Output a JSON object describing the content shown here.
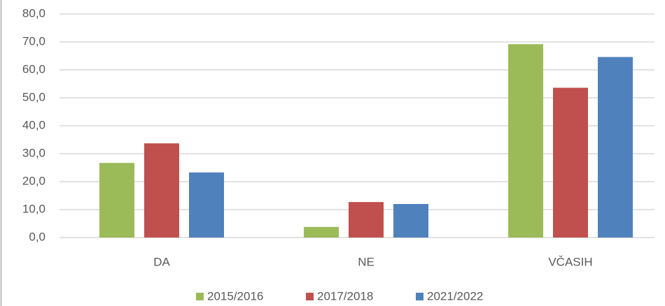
{
  "chart_data": {
    "type": "bar",
    "categories": [
      "DA",
      "NE",
      "VČASIH"
    ],
    "series": [
      {
        "name": "2015/2016",
        "color": "#9bbb59",
        "values": [
          26.7,
          3.8,
          69.2
        ]
      },
      {
        "name": "2017/2018",
        "color": "#c0504d",
        "values": [
          33.7,
          12.7,
          53.6
        ]
      },
      {
        "name": "2021/2022",
        "color": "#4f81bd",
        "values": [
          23.3,
          12.0,
          64.6
        ]
      }
    ],
    "ylim": [
      0,
      80
    ],
    "yticks": [
      {
        "value": 0,
        "label": "0,0"
      },
      {
        "value": 10,
        "label": "10,0"
      },
      {
        "value": 20,
        "label": "20,0"
      },
      {
        "value": 30,
        "label": "30,0"
      },
      {
        "value": 40,
        "label": "40,0"
      },
      {
        "value": 50,
        "label": "50,0"
      },
      {
        "value": 60,
        "label": "60,0"
      },
      {
        "value": 70,
        "label": "70,0"
      },
      {
        "value": 80,
        "label": "80,0"
      }
    ],
    "grid": true,
    "legend": "bottom"
  }
}
